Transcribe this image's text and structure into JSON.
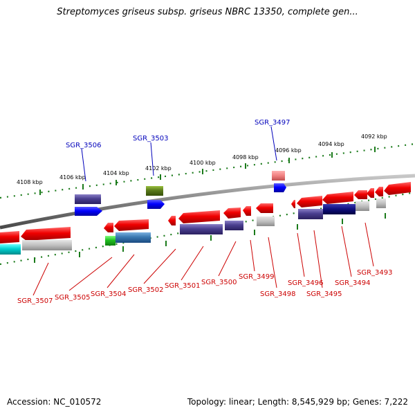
{
  "title": "Streptomyces griseus subsp. griseus NBRC 13350, complete gen...",
  "footer": {
    "accession": "Accession: NC_010572",
    "topology": "Topology: linear; Length: 8,545,929 bp; Genes: 7,222"
  },
  "ruler_labels": [
    "4108 kbp",
    "4106 kbp",
    "4104 kbp",
    "4102 kbp",
    "4100 kbp",
    "4098 kbp",
    "4096 kbp",
    "4094 kbp",
    "4092 kbp"
  ],
  "top_gene_labels": [
    "SGR_3506",
    "SGR_3503",
    "SGR_3497"
  ],
  "bottom_gene_labels": [
    "SGR_3507",
    "SGR_3505",
    "SGR_3504",
    "SGR_3502",
    "SGR_3501",
    "SGR_3500",
    "SGR_3499",
    "SGR_3498",
    "SGR_3496",
    "SGR_3495",
    "SGR_3494",
    "SGR_3493"
  ],
  "colors": {
    "forward_label": "#0000bb",
    "reverse_label": "#cc0000",
    "ruler": "#1a7a1a",
    "backbone": "#808080"
  }
}
